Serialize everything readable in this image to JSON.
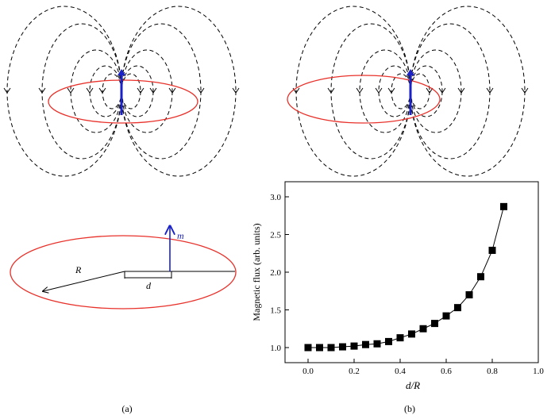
{
  "figure": {
    "panel_a_caption": "(a)",
    "panel_b_caption": "(b)",
    "labels": {
      "moment": "m",
      "radius": "R",
      "offset": "d"
    },
    "colors": {
      "field_lines": "#000000",
      "loop": "#e8312a",
      "dipole": "#1a22c8",
      "markers": "#000000"
    }
  },
  "chart_data": {
    "type": "line",
    "xlabel": "d/R",
    "ylabel": "Magnetic flux (arb. units)",
    "xlim": [
      -0.1,
      1.0
    ],
    "ylim": [
      0.8,
      3.2
    ],
    "xticks": [
      "0.0",
      "0.2",
      "0.4",
      "0.6",
      "0.8",
      "1.0"
    ],
    "yticks": [
      "1.0",
      "1.5",
      "2.0",
      "2.5",
      "3.0"
    ],
    "grid": false,
    "marker": "filled-square",
    "series": [
      {
        "x": [
          0.0,
          0.05,
          0.1,
          0.15,
          0.2,
          0.25,
          0.3,
          0.35,
          0.4,
          0.45,
          0.5,
          0.55,
          0.6,
          0.65,
          0.7,
          0.75,
          0.8,
          0.85
        ],
        "values": [
          1.0,
          1.0,
          1.0,
          1.01,
          1.02,
          1.04,
          1.05,
          1.08,
          1.13,
          1.18,
          1.25,
          1.32,
          1.42,
          1.53,
          1.7,
          1.94,
          2.29,
          2.87
        ]
      }
    ]
  }
}
